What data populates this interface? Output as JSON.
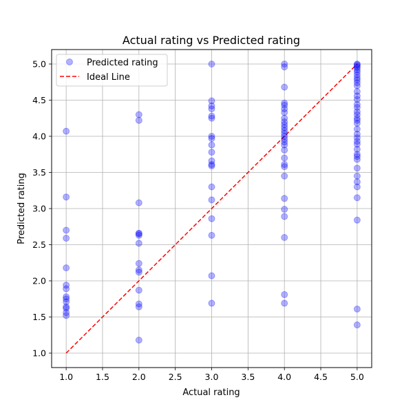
{
  "chart_data": {
    "type": "scatter",
    "title": "Actual rating vs Predicted rating",
    "xlabel": "Actual rating",
    "ylabel": "Predicted rating",
    "xlim": [
      0.8,
      5.2
    ],
    "ylim": [
      0.8,
      5.2
    ],
    "xticks": [
      1.0,
      1.5,
      2.0,
      2.5,
      3.0,
      3.5,
      4.0,
      4.5,
      5.0
    ],
    "yticks": [
      1.0,
      1.5,
      2.0,
      2.5,
      3.0,
      3.5,
      4.0,
      4.5,
      5.0
    ],
    "xtick_labels": [
      "1.0",
      "1.5",
      "2.0",
      "2.5",
      "3.0",
      "3.5",
      "4.0",
      "4.5",
      "5.0"
    ],
    "ytick_labels": [
      "1.0",
      "1.5",
      "2.0",
      "2.5",
      "3.0",
      "3.5",
      "4.0",
      "4.5",
      "5.0"
    ],
    "grid": true,
    "legend_position": "top-left",
    "legend": [
      "Predicted rating",
      "Ideal Line"
    ],
    "series": [
      {
        "name": "Predicted rating",
        "kind": "scatter",
        "color": "#0000ff",
        "opacity": 0.3,
        "points": [
          [
            1.0,
            4.07
          ],
          [
            1.0,
            3.16
          ],
          [
            1.0,
            2.7
          ],
          [
            1.0,
            2.59
          ],
          [
            1.0,
            2.18
          ],
          [
            1.0,
            1.94
          ],
          [
            1.0,
            1.89
          ],
          [
            1.0,
            1.78
          ],
          [
            1.0,
            1.75
          ],
          [
            1.0,
            1.71
          ],
          [
            1.0,
            1.64
          ],
          [
            1.0,
            1.62
          ],
          [
            1.0,
            1.56
          ],
          [
            1.0,
            1.52
          ],
          [
            2.0,
            4.3
          ],
          [
            2.0,
            4.22
          ],
          [
            2.0,
            3.08
          ],
          [
            2.0,
            2.66
          ],
          [
            2.0,
            2.65
          ],
          [
            2.0,
            2.63
          ],
          [
            2.0,
            2.52
          ],
          [
            2.0,
            2.24
          ],
          [
            2.0,
            2.15
          ],
          [
            2.0,
            2.12
          ],
          [
            2.0,
            1.87
          ],
          [
            2.0,
            1.68
          ],
          [
            2.0,
            1.64
          ],
          [
            2.0,
            1.18
          ],
          [
            3.0,
            5.0
          ],
          [
            3.0,
            4.49
          ],
          [
            3.0,
            4.42
          ],
          [
            3.0,
            4.38
          ],
          [
            3.0,
            4.28
          ],
          [
            3.0,
            4.25
          ],
          [
            3.0,
            4.0
          ],
          [
            3.0,
            3.97
          ],
          [
            3.0,
            3.88
          ],
          [
            3.0,
            3.78
          ],
          [
            3.0,
            3.66
          ],
          [
            3.0,
            3.61
          ],
          [
            3.0,
            3.59
          ],
          [
            3.0,
            3.3
          ],
          [
            3.0,
            3.12
          ],
          [
            3.0,
            2.86
          ],
          [
            3.0,
            2.63
          ],
          [
            3.0,
            2.07
          ],
          [
            3.0,
            1.69
          ],
          [
            4.0,
            5.0
          ],
          [
            4.0,
            4.96
          ],
          [
            4.0,
            4.68
          ],
          [
            4.0,
            4.46
          ],
          [
            4.0,
            4.43
          ],
          [
            4.0,
            4.38
          ],
          [
            4.0,
            4.33
          ],
          [
            4.0,
            4.25
          ],
          [
            4.0,
            4.2
          ],
          [
            4.0,
            4.16
          ],
          [
            4.0,
            4.12
          ],
          [
            4.0,
            4.08
          ],
          [
            4.0,
            4.04
          ],
          [
            4.0,
            4.0
          ],
          [
            4.0,
            3.96
          ],
          [
            4.0,
            3.92
          ],
          [
            4.0,
            3.88
          ],
          [
            4.0,
            3.81
          ],
          [
            4.0,
            3.7
          ],
          [
            4.0,
            3.61
          ],
          [
            4.0,
            3.58
          ],
          [
            4.0,
            3.45
          ],
          [
            4.0,
            3.14
          ],
          [
            4.0,
            2.99
          ],
          [
            4.0,
            2.89
          ],
          [
            4.0,
            2.6
          ],
          [
            4.0,
            1.81
          ],
          [
            4.0,
            1.69
          ],
          [
            5.0,
            5.0
          ],
          [
            5.0,
            4.99
          ],
          [
            5.0,
            4.97
          ],
          [
            5.0,
            4.95
          ],
          [
            5.0,
            4.92
          ],
          [
            5.0,
            4.89
          ],
          [
            5.0,
            4.85
          ],
          [
            5.0,
            4.81
          ],
          [
            5.0,
            4.78
          ],
          [
            5.0,
            4.74
          ],
          [
            5.0,
            4.7
          ],
          [
            5.0,
            4.62
          ],
          [
            5.0,
            4.56
          ],
          [
            5.0,
            4.51
          ],
          [
            5.0,
            4.44
          ],
          [
            5.0,
            4.4
          ],
          [
            5.0,
            4.34
          ],
          [
            5.0,
            4.3
          ],
          [
            5.0,
            4.25
          ],
          [
            5.0,
            4.22
          ],
          [
            5.0,
            4.18
          ],
          [
            5.0,
            4.1
          ],
          [
            5.0,
            4.03
          ],
          [
            5.0,
            3.98
          ],
          [
            5.0,
            3.93
          ],
          [
            5.0,
            3.89
          ],
          [
            5.0,
            3.82
          ],
          [
            5.0,
            3.75
          ],
          [
            5.0,
            3.72
          ],
          [
            5.0,
            3.68
          ],
          [
            5.0,
            3.56
          ],
          [
            5.0,
            3.45
          ],
          [
            5.0,
            3.37
          ],
          [
            5.0,
            3.3
          ],
          [
            5.0,
            3.15
          ],
          [
            5.0,
            2.84
          ],
          [
            5.0,
            1.61
          ],
          [
            5.0,
            1.39
          ]
        ]
      },
      {
        "name": "Ideal Line",
        "kind": "line",
        "color": "#ff0000",
        "dash": "dashed",
        "points": [
          [
            1.0,
            1.0
          ],
          [
            5.0,
            5.0
          ]
        ]
      }
    ]
  }
}
